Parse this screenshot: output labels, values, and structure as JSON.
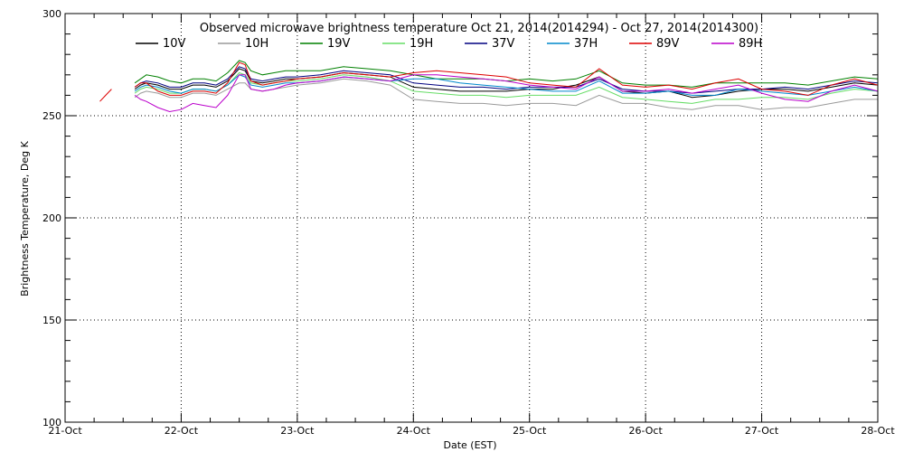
{
  "chart_data": {
    "type": "line",
    "title": "Observed microwave brightness temperature Oct 21, 2014(2014294) - Oct 27, 2014(2014300)",
    "xlabel": "Date (EST)",
    "ylabel": "Brightness Temperature, Deg K",
    "x_ticks": [
      "21-Oct",
      "22-Oct",
      "23-Oct",
      "24-Oct",
      "25-Oct",
      "26-Oct",
      "27-Oct",
      "28-Oct"
    ],
    "y_ticks": [
      "100",
      "150",
      "200",
      "250",
      "300"
    ],
    "xlim": [
      0,
      7
    ],
    "ylim": [
      100,
      300
    ],
    "x_unit": "days since 21-Oct",
    "grid": true,
    "legend_position": "top",
    "x": [
      0.0,
      0.3,
      0.35,
      0.4,
      0.45,
      0.5,
      0.55,
      0.6,
      0.65,
      0.7,
      0.8,
      0.9,
      1.0,
      1.1,
      1.2,
      1.3,
      1.4,
      1.5,
      1.55,
      1.6,
      1.7,
      1.8,
      1.9,
      2.0,
      2.2,
      2.4,
      2.6,
      2.8,
      3.0,
      3.2,
      3.4,
      3.6,
      3.8,
      4.0,
      4.2,
      4.4,
      4.6,
      4.8,
      5.0,
      5.2,
      5.4,
      5.6,
      5.8,
      6.0,
      6.2,
      6.4,
      6.6,
      6.8,
      7.0
    ],
    "series": [
      {
        "name": "10V",
        "color": "#000000",
        "values": [
          260,
          null,
          null,
          null,
          null,
          275,
          null,
          263,
          265,
          266,
          265,
          263,
          263,
          265,
          265,
          264,
          267,
          273,
          272,
          267,
          266,
          267,
          268,
          268,
          269,
          271,
          270,
          269,
          264,
          263,
          262,
          262,
          262,
          263,
          263,
          265,
          269,
          262,
          261,
          262,
          259,
          260,
          262,
          263,
          263,
          262,
          264,
          266,
          265
        ]
      },
      {
        "name": "10H",
        "color": "#9a9a9a",
        "values": [
          null,
          null,
          null,
          null,
          null,
          266,
          null,
          259,
          261,
          262,
          261,
          259,
          259,
          261,
          261,
          260,
          263,
          266,
          266,
          263,
          262,
          263,
          264,
          265,
          266,
          268,
          267,
          265,
          258,
          257,
          256,
          256,
          255,
          256,
          256,
          255,
          260,
          256,
          256,
          254,
          253,
          255,
          255,
          253,
          254,
          254,
          256,
          258,
          258
        ]
      },
      {
        "name": "19V",
        "color": "#008000",
        "values": [
          262,
          null,
          null,
          null,
          null,
          276,
          null,
          266,
          268,
          270,
          269,
          267,
          266,
          268,
          268,
          267,
          271,
          277,
          276,
          272,
          270,
          271,
          272,
          272,
          272,
          274,
          273,
          272,
          270,
          268,
          268,
          268,
          267,
          268,
          267,
          268,
          272,
          266,
          265,
          265,
          264,
          266,
          266,
          266,
          266,
          265,
          267,
          269,
          268
        ]
      },
      {
        "name": "19H",
        "color": "#66dd66",
        "values": [
          null,
          null,
          null,
          null,
          null,
          270,
          null,
          261,
          263,
          264,
          263,
          261,
          261,
          263,
          263,
          262,
          265,
          271,
          270,
          266,
          265,
          266,
          267,
          267,
          268,
          270,
          269,
          267,
          262,
          261,
          260,
          260,
          259,
          260,
          260,
          260,
          264,
          259,
          258,
          257,
          256,
          258,
          258,
          259,
          259,
          258,
          261,
          263,
          262
        ]
      },
      {
        "name": "37V",
        "color": "#000080",
        "values": [
          259,
          null,
          null,
          null,
          null,
          272,
          null,
          264,
          266,
          267,
          266,
          264,
          264,
          266,
          266,
          265,
          268,
          274,
          273,
          268,
          267,
          268,
          269,
          269,
          270,
          272,
          271,
          270,
          266,
          265,
          264,
          264,
          263,
          264,
          264,
          264,
          268,
          263,
          262,
          262,
          261,
          262,
          263,
          263,
          264,
          263,
          265,
          267,
          266
        ]
      },
      {
        "name": "37H",
        "color": "#0088cc",
        "values": [
          null,
          null,
          null,
          null,
          null,
          268,
          null,
          262,
          264,
          265,
          264,
          262,
          261,
          263,
          263,
          262,
          265,
          270,
          269,
          265,
          264,
          265,
          266,
          266,
          267,
          269,
          268,
          267,
          268,
          268,
          266,
          265,
          264,
          263,
          262,
          262,
          267,
          261,
          261,
          262,
          260,
          260,
          263,
          262,
          261,
          260,
          262,
          264,
          262
        ]
      },
      {
        "name": "89V",
        "color": "#dd0000",
        "values": [
          null,
          257,
          260,
          263,
          null,
          274,
          null,
          264,
          266,
          266,
          262,
          260,
          260,
          262,
          262,
          261,
          266,
          276,
          275,
          267,
          265,
          266,
          267,
          268,
          269,
          271,
          270,
          269,
          271,
          272,
          271,
          270,
          269,
          266,
          265,
          264,
          273,
          265,
          264,
          265,
          263,
          266,
          268,
          263,
          262,
          260,
          265,
          268,
          265
        ]
      },
      {
        "name": "89H",
        "color": "#bb00cc",
        "values": [
          null,
          null,
          null,
          null,
          null,
          270,
          null,
          260,
          258,
          257,
          254,
          252,
          253,
          256,
          255,
          254,
          260,
          270,
          270,
          263,
          262,
          263,
          265,
          266,
          267,
          269,
          268,
          267,
          270,
          270,
          269,
          268,
          267,
          265,
          264,
          263,
          269,
          262,
          262,
          263,
          261,
          263,
          265,
          261,
          258,
          257,
          262,
          265,
          262
        ]
      }
    ]
  }
}
